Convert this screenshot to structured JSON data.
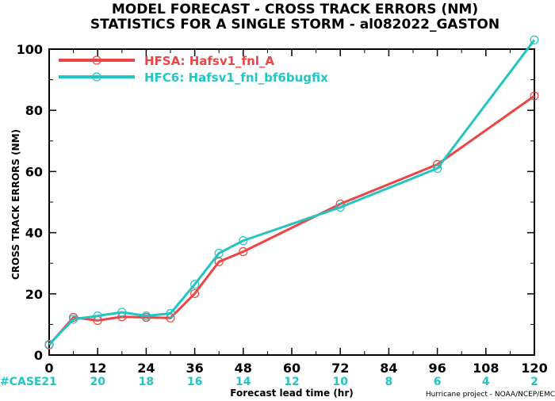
{
  "chart_data": {
    "type": "line",
    "title": "MODEL FORECAST - CROSS TRACK ERRORS (NM)",
    "subtitle": "STATISTICS FOR A SINGLE STORM - al082022_GASTON",
    "xlabel": "Forecast lead time (hr)",
    "ylabel": "CROSS TRACK ERRORS (NM)",
    "xlim": [
      0,
      120
    ],
    "ylim": [
      0,
      100
    ],
    "xticks": [
      0,
      12,
      24,
      36,
      48,
      60,
      72,
      84,
      96,
      108,
      120
    ],
    "yticks": [
      0,
      20,
      40,
      60,
      80,
      100
    ],
    "grid": false,
    "legend_position": "top-left",
    "case_label": "#CASE",
    "case_values": [
      21,
      20,
      18,
      16,
      14,
      12,
      10,
      8,
      6,
      4,
      2
    ],
    "credit": "Hurricane project - NOAA/NCEP/EMC",
    "series": [
      {
        "name": "HFSA: Hafsv1_fnl_A",
        "color": "#ee4444",
        "x": [
          0,
          6,
          12,
          18,
          24,
          30,
          36,
          42,
          48,
          72,
          96,
          120
        ],
        "y": [
          3.3,
          12.3,
          11.3,
          12.5,
          12.3,
          12.1,
          20.1,
          30.5,
          33.8,
          49.4,
          62.3,
          84.7
        ]
      },
      {
        "name": "HFC6: Hafsv1_fnl_bf6bugfix",
        "color": "#22c4c4",
        "x": [
          0,
          6,
          12,
          18,
          24,
          30,
          36,
          42,
          48,
          72,
          96,
          120
        ],
        "y": [
          3.5,
          11.7,
          12.8,
          14.0,
          12.8,
          13.6,
          23.1,
          33.3,
          37.4,
          48.3,
          61.0,
          103.0
        ]
      }
    ]
  }
}
